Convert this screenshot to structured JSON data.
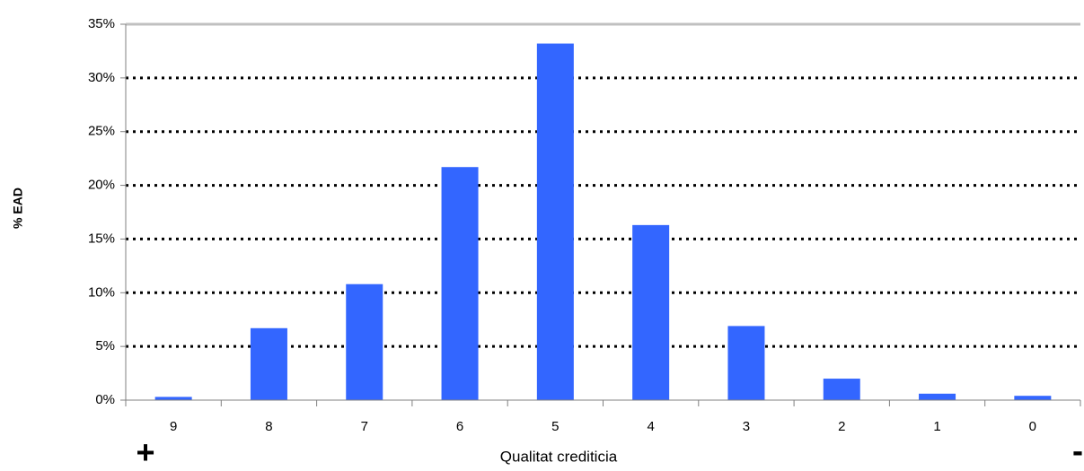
{
  "chart_data": {
    "type": "bar",
    "categories": [
      "9",
      "8",
      "7",
      "6",
      "5",
      "4",
      "3",
      "2",
      "1",
      "0"
    ],
    "series": [
      {
        "values": [
          0.3,
          6.7,
          10.8,
          21.7,
          33.2,
          16.3,
          6.9,
          2.0,
          0.6,
          0.4
        ]
      }
    ],
    "ylim": [
      0,
      35
    ],
    "yticks": [
      0,
      5,
      10,
      15,
      20,
      25,
      30,
      35
    ],
    "ytick_labels": [
      "0%",
      "5%",
      "10%",
      "15%",
      "20%",
      "25%",
      "30%",
      "35%"
    ],
    "xlabel": "Qualitat crediticia",
    "ylabel": "% EAD",
    "grid": "dotted horizontal",
    "colors": {
      "bar": "#3366ff",
      "grid": "#000000",
      "axis": "#808080"
    },
    "annotations": {
      "left": "+",
      "right": "-"
    }
  }
}
